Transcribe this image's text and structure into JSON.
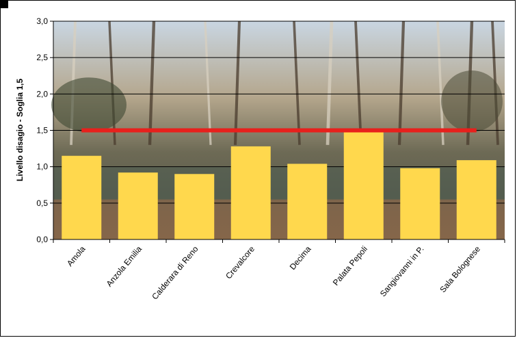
{
  "chart_data": {
    "type": "bar",
    "title": "",
    "xlabel": "",
    "ylabel": "Livello disagio - Soglia 1,5",
    "categories": [
      "Amola",
      "Anzola Emilia",
      "Calderara di Reno",
      "Crevalcore",
      "Decima",
      "Palata Pepoli",
      "Sangiovanni in P.",
      "Sala Bolognese"
    ],
    "values": [
      1.15,
      0.92,
      0.9,
      1.28,
      1.04,
      1.48,
      0.98,
      1.09
    ],
    "ylim": [
      0,
      3.0
    ],
    "yticks": [
      "0,0",
      "0,5",
      "1,0",
      "1,5",
      "2,0",
      "2,5",
      "3,0"
    ],
    "threshold": {
      "value": 1.5,
      "color": "#e8201c"
    },
    "grid": true,
    "legend": "none",
    "bar_color": "#ffd84d",
    "background": "photo-forest-pond"
  }
}
